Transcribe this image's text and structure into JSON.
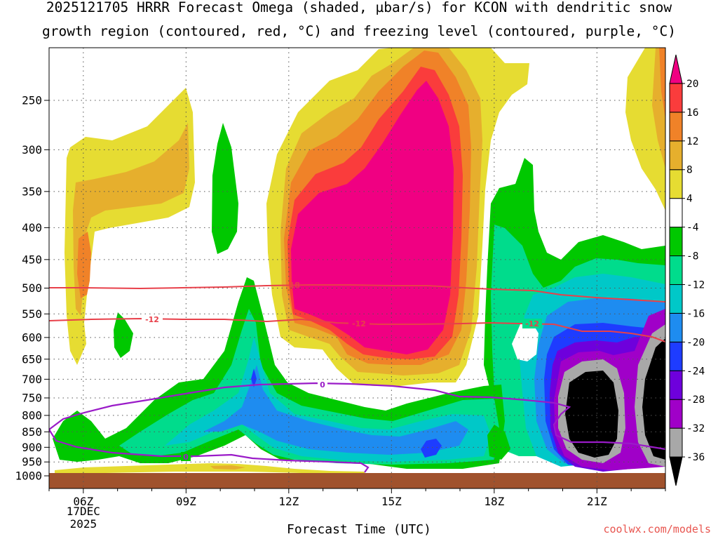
{
  "title": {
    "line1": "2025121705 HRRR Forecast Omega (shaded, µbar/s) for KCON with dendritic snow",
    "line2": "growth region (contoured, red, °C) and freezing level (contoured, purple, °C)"
  },
  "chart_data": {
    "type": "heatmap",
    "title": "2025121705 HRRR Forecast Omega (shaded, µbar/s) for KCON with dendritic snow growth region (contoured, red, °C) and freezing level (contoured, purple, °C)",
    "xlabel": "Forecast Time (UTC)",
    "ylabel": "",
    "x_ticks": [
      "06Z",
      "09Z",
      "12Z",
      "15Z",
      "18Z",
      "21Z"
    ],
    "x_tick_hours": [
      6,
      9,
      12,
      15,
      18,
      21
    ],
    "xlim": [
      5,
      23
    ],
    "x_date_line1": "17DEC",
    "x_date_line2": "2025",
    "y_ticks": [
      250,
      300,
      350,
      400,
      450,
      500,
      550,
      600,
      650,
      700,
      750,
      800,
      850,
      900,
      950,
      1000
    ],
    "y_scale": "log-pressure (inverted)",
    "ylim": [
      1000,
      200
    ],
    "grid": true,
    "colorbar": {
      "levels": [
        -36,
        -32,
        -28,
        -24,
        -20,
        -16,
        -12,
        -8,
        -4,
        4,
        8,
        12,
        16,
        20
      ],
      "colors": [
        "#000000",
        "#a8a8a8",
        "#a000c8",
        "#6e00dc",
        "#1e3cff",
        "#1e8cf0",
        "#00c8c8",
        "#00dc8c",
        "#00c800",
        "#ffffff",
        "#e6dc32",
        "#e6af2d",
        "#f08228",
        "#fa3c3c",
        "#f00082"
      ],
      "extend": "both"
    },
    "contours": [
      {
        "name": "dendritic snow growth region",
        "color": "#e8404a",
        "levels": [
          -12,
          -18
        ]
      },
      {
        "name": "freezing level",
        "color": "#9a1bc8",
        "levels": [
          0
        ]
      }
    ],
    "credit": "coolwx.com/models"
  }
}
